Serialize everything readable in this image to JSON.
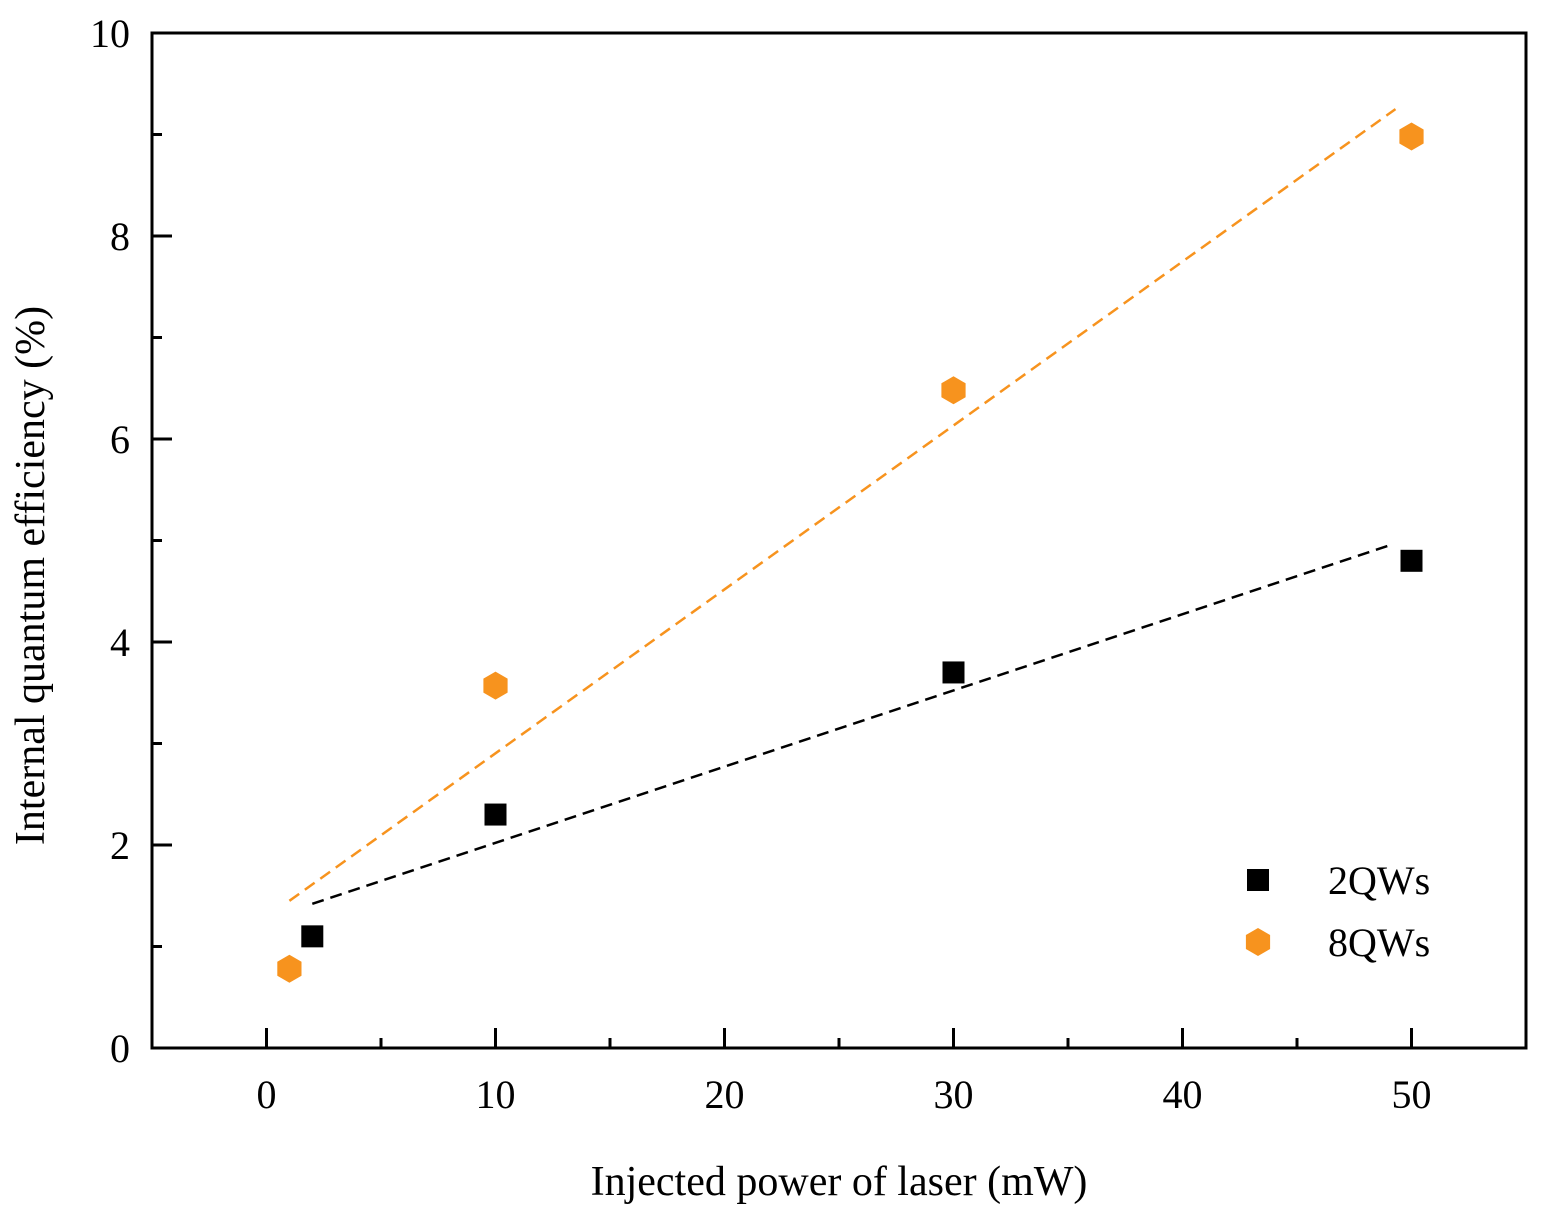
{
  "chart_data": {
    "type": "scatter",
    "title": "",
    "xlabel": "Injected power of laser (mW)",
    "ylabel": "Internal quantum efficiency (%)",
    "xlim": [
      -5,
      55
    ],
    "ylim": [
      0,
      10
    ],
    "xticks": [
      0,
      10,
      20,
      30,
      40,
      50
    ],
    "xtick_labels": [
      "0",
      "10",
      "20",
      "30",
      "40",
      "50"
    ],
    "xminor": [
      5,
      15,
      25,
      35,
      45
    ],
    "yticks": [
      0,
      2,
      4,
      6,
      8,
      10
    ],
    "ytick_labels": [
      "0",
      "2",
      "4",
      "6",
      "8",
      "10"
    ],
    "yminor": [
      1,
      3,
      5,
      7,
      9
    ],
    "grid": false,
    "legend_position": "bottom-right",
    "series": [
      {
        "name": "2QWs",
        "marker": "square",
        "color": "#000000",
        "x": [
          2,
          10,
          30,
          50
        ],
        "y": [
          1.1,
          2.3,
          3.7,
          4.8
        ],
        "fit": {
          "style": "dashed",
          "color": "#000000",
          "x": [
            2,
            49
          ],
          "y": [
            1.42,
            4.95
          ]
        }
      },
      {
        "name": "8QWs",
        "marker": "hexagon",
        "color": "#f7931e",
        "x": [
          1,
          10,
          30,
          50
        ],
        "y": [
          0.78,
          3.57,
          6.48,
          8.98
        ],
        "fit": {
          "style": "dashed",
          "color": "#f7931e",
          "x": [
            1,
            49.3
          ],
          "y": [
            1.45,
            9.25
          ]
        }
      }
    ]
  }
}
